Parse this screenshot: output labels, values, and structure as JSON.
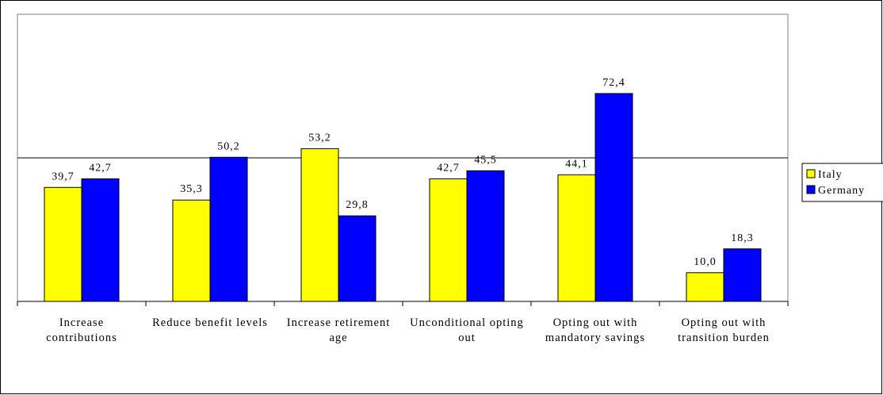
{
  "chart_data": {
    "type": "bar",
    "categories": [
      "Increase contributions",
      "Reduce benefit levels",
      "Increase retirement age",
      "Unconditional opting out",
      "Opting out with mandatory savings",
      "Opting out with transition burden"
    ],
    "series": [
      {
        "name": "Italy",
        "color": "#ffff00",
        "values": [
          39.7,
          35.3,
          53.2,
          42.7,
          44.1,
          10.0
        ],
        "value_labels": [
          "39,7",
          "35,3",
          "53,2",
          "42,7",
          "44,1",
          "10,0"
        ]
      },
      {
        "name": "Germany",
        "color": "#0000ff",
        "values": [
          42.7,
          50.2,
          29.8,
          45.5,
          72.4,
          18.3
        ],
        "value_labels": [
          "42,7",
          "50,2",
          "29,8",
          "45,5",
          "72,4",
          "18,3"
        ]
      }
    ],
    "ylim": [
      0,
      100
    ],
    "grid_lines": [
      50
    ],
    "legend": "right"
  }
}
